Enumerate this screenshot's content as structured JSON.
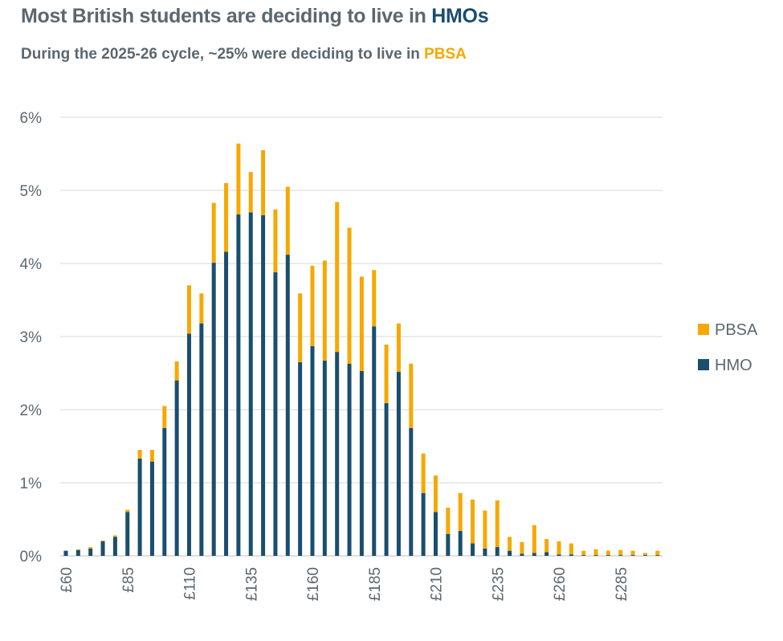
{
  "title": {
    "prefix": "Most British students are deciding to live in ",
    "highlight": "HMOs",
    "highlight_color": "#1a4e6e"
  },
  "subtitle": {
    "prefix": "During the 2025-26 cycle, ~25% were deciding to live in ",
    "highlight": "PBSA",
    "highlight_color": "#f6a800"
  },
  "colors": {
    "HMO": "#1a4e6e",
    "PBSA": "#f6a800",
    "text": "#5b6770",
    "grid": "#d9d9d9"
  },
  "chart_data": {
    "type": "bar",
    "stacked": true,
    "x": [
      60,
      65,
      70,
      75,
      80,
      85,
      90,
      95,
      100,
      105,
      110,
      115,
      120,
      125,
      130,
      135,
      140,
      145,
      150,
      155,
      160,
      165,
      170,
      175,
      180,
      185,
      190,
      195,
      200,
      205,
      210,
      215,
      220,
      225,
      230,
      235,
      240,
      245,
      250,
      255,
      260,
      265,
      270,
      275,
      280,
      285,
      290,
      295,
      300
    ],
    "x_tick_labels": [
      "£60",
      "£85",
      "£110",
      "£135",
      "£160",
      "£185",
      "£210",
      "£235",
      "£260",
      "£285"
    ],
    "y_tick_labels": [
      "0%",
      "1%",
      "2%",
      "3%",
      "4%",
      "5%",
      "6%"
    ],
    "ylim": [
      0,
      6
    ],
    "grid": true,
    "legend_position": "right",
    "series": [
      {
        "name": "HMO",
        "values": [
          0.07,
          0.08,
          0.1,
          0.2,
          0.26,
          0.6,
          1.33,
          1.29,
          1.75,
          2.4,
          3.04,
          3.18,
          4.01,
          4.16,
          4.67,
          4.7,
          4.66,
          3.88,
          4.12,
          2.65,
          2.87,
          2.67,
          2.79,
          2.63,
          2.53,
          3.14,
          2.09,
          2.52,
          1.75,
          0.86,
          0.6,
          0.3,
          0.34,
          0.17,
          0.1,
          0.12,
          0.07,
          0.03,
          0.04,
          0.05,
          0.02,
          0.02,
          0.01,
          0.01,
          0.01,
          0.01,
          0.01,
          0.01,
          0.01
        ]
      },
      {
        "name": "PBSA",
        "values": [
          0.0,
          0.01,
          0.02,
          0.01,
          0.02,
          0.03,
          0.12,
          0.16,
          0.3,
          0.26,
          0.66,
          0.41,
          0.82,
          0.94,
          0.97,
          0.55,
          0.89,
          0.86,
          0.93,
          0.94,
          1.1,
          1.37,
          2.05,
          1.86,
          1.29,
          0.77,
          0.8,
          0.66,
          0.88,
          0.54,
          0.5,
          0.36,
          0.52,
          0.6,
          0.52,
          0.64,
          0.19,
          0.16,
          0.38,
          0.18,
          0.18,
          0.15,
          0.06,
          0.08,
          0.06,
          0.07,
          0.06,
          0.03,
          0.06
        ]
      }
    ]
  }
}
